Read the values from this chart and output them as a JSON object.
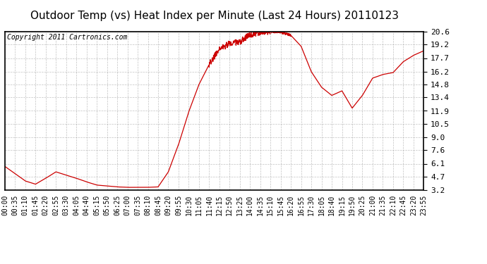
{
  "title": "Outdoor Temp (vs) Heat Index per Minute (Last 24 Hours) 20110123",
  "copyright": "Copyright 2011 Cartronics.com",
  "yticks": [
    3.2,
    4.7,
    6.1,
    7.6,
    9.0,
    10.5,
    11.9,
    13.4,
    14.8,
    16.2,
    17.7,
    19.2,
    20.6
  ],
  "ymin": 3.2,
  "ymax": 20.6,
  "line_color": "#cc0000",
  "bg_color": "#ffffff",
  "plot_bg_color": "#ffffff",
  "grid_color": "#999999",
  "title_fontsize": 11,
  "copyright_fontsize": 7,
  "tick_fontsize": 7,
  "ytick_fontsize": 8,
  "xtick_labels": [
    "00:00",
    "00:35",
    "01:10",
    "01:45",
    "02:20",
    "02:55",
    "03:30",
    "04:05",
    "04:40",
    "05:15",
    "05:50",
    "06:25",
    "07:00",
    "07:35",
    "08:10",
    "08:45",
    "09:20",
    "09:55",
    "10:30",
    "11:05",
    "11:40",
    "12:15",
    "12:50",
    "13:25",
    "14:00",
    "14:35",
    "15:10",
    "15:45",
    "16:20",
    "16:55",
    "17:30",
    "18:05",
    "18:40",
    "19:15",
    "19:50",
    "20:25",
    "21:00",
    "21:35",
    "22:10",
    "22:45",
    "23:20",
    "23:55"
  ],
  "key_x": [
    0,
    1,
    2,
    3,
    4,
    5,
    6,
    7,
    8,
    9,
    10,
    11,
    12,
    13,
    14,
    15,
    16,
    17,
    18,
    19,
    20,
    21,
    22,
    23,
    24,
    25,
    26,
    27,
    28,
    29,
    30,
    31,
    32,
    33,
    34,
    35,
    36,
    37,
    38,
    39,
    40,
    41
  ],
  "key_y": [
    5.8,
    5.0,
    4.2,
    3.85,
    4.5,
    5.2,
    4.85,
    4.5,
    4.1,
    3.75,
    3.65,
    3.55,
    3.5,
    3.5,
    3.5,
    3.55,
    5.2,
    8.2,
    11.8,
    14.8,
    17.0,
    18.7,
    19.3,
    19.5,
    20.3,
    20.55,
    20.6,
    20.55,
    20.2,
    19.0,
    16.2,
    14.5,
    13.6,
    14.1,
    12.2,
    13.6,
    15.5,
    15.9,
    16.1,
    17.3,
    18.0,
    18.5
  ]
}
